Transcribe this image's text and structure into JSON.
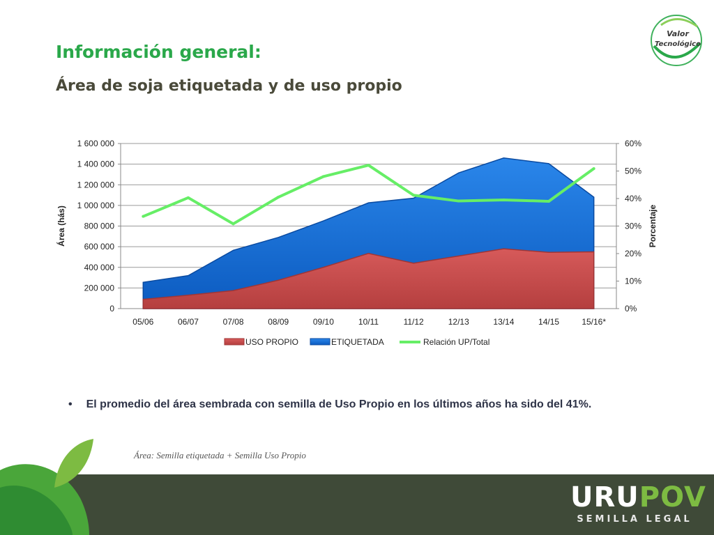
{
  "header": {
    "title": "Información general:",
    "subtitle": "Área de soja etiquetada y de uso propio"
  },
  "logo_top": {
    "line1": "Valor",
    "line2": "Tecnológico"
  },
  "chart_data": {
    "type": "area",
    "categories": [
      "05/06",
      "06/07",
      "07/08",
      "08/09",
      "09/10",
      "10/11",
      "11/12",
      "12/13",
      "13/14",
      "14/15",
      "15/16*"
    ],
    "series": [
      {
        "name": "USO PROPIO",
        "type": "area",
        "axis": "left",
        "color": "#c84b4b",
        "values": [
          90000,
          130000,
          175000,
          275000,
          400000,
          535000,
          440000,
          510000,
          580000,
          545000,
          550000
        ]
      },
      {
        "name": "ETIQUETADA",
        "type": "area-total",
        "axis": "left",
        "color": "#1a6fd4",
        "values": [
          255000,
          320000,
          565000,
          690000,
          850000,
          1025000,
          1070000,
          1315000,
          1460000,
          1405000,
          1080000
        ]
      },
      {
        "name": "Relación UP/Total",
        "type": "line",
        "axis": "right",
        "color": "#66ee66",
        "values": [
          33.5,
          40.3,
          30.8,
          40.5,
          48,
          52.1,
          41.2,
          39.1,
          39.5,
          39,
          50.9
        ]
      }
    ],
    "ylabel": "Área (hás)",
    "y2label": "Porcentaje",
    "ylim": [
      0,
      1600000
    ],
    "y2lim": [
      0,
      60
    ],
    "yticks": [
      "0",
      "200 000",
      "400 000",
      "600 000",
      "800 000",
      "1 000 000",
      "1 200 000",
      "1 400 000",
      "1 600 000"
    ],
    "y2ticks": [
      "0%",
      "10%",
      "20%",
      "30%",
      "40%",
      "50%",
      "60%"
    ],
    "grid": true,
    "legend": "bottom"
  },
  "bullet": {
    "symbol": "•",
    "text": "El promedio del área sembrada con semilla de Uso Propio en los últimos años ha sido del  41%."
  },
  "note": "Área: Semilla  etiquetada + Semilla Uso Propio",
  "brand": {
    "part1": "URU",
    "part2": "POV",
    "sub": "SEMILLA LEGAL"
  }
}
